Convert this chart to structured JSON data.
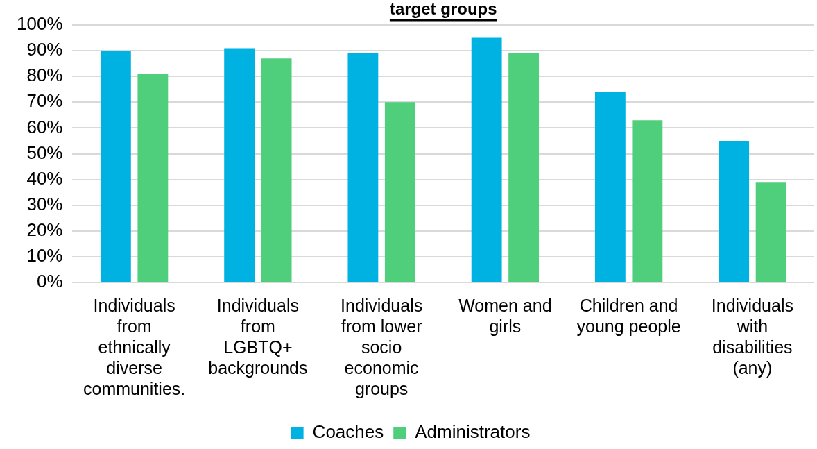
{
  "chart_data": {
    "type": "bar",
    "title": "target groups",
    "categories": [
      "Individuals\nfrom\nethnically\ndiverse\ncommunities.",
      "Individuals\nfrom\nLGBTQ+\nbackgrounds",
      "Individuals\nfrom lower\nsocio\neconomic\ngroups",
      "Women and\ngirls",
      "Children and\nyoung people",
      "Individuals\nwith\ndisabilities\n(any)"
    ],
    "series": [
      {
        "name": "Coaches",
        "color": "#00b2e2",
        "values": [
          90,
          91,
          89,
          95,
          74,
          55
        ]
      },
      {
        "name": "Administrators",
        "color": "#4fce7b",
        "values": [
          81,
          87,
          70,
          89,
          63,
          39
        ]
      }
    ],
    "ylim": [
      0,
      100
    ],
    "yticks": [
      {
        "value": 0,
        "label": "0%"
      },
      {
        "value": 10,
        "label": "10%"
      },
      {
        "value": 20,
        "label": "20%"
      },
      {
        "value": 30,
        "label": "30%"
      },
      {
        "value": 40,
        "label": "40%"
      },
      {
        "value": 50,
        "label": "50%"
      },
      {
        "value": 60,
        "label": "60%"
      },
      {
        "value": 70,
        "label": "70%"
      },
      {
        "value": 80,
        "label": "80%"
      },
      {
        "value": 90,
        "label": "90%"
      },
      {
        "value": 100,
        "label": "100%"
      }
    ],
    "grid": "y",
    "legend": "bottom"
  }
}
